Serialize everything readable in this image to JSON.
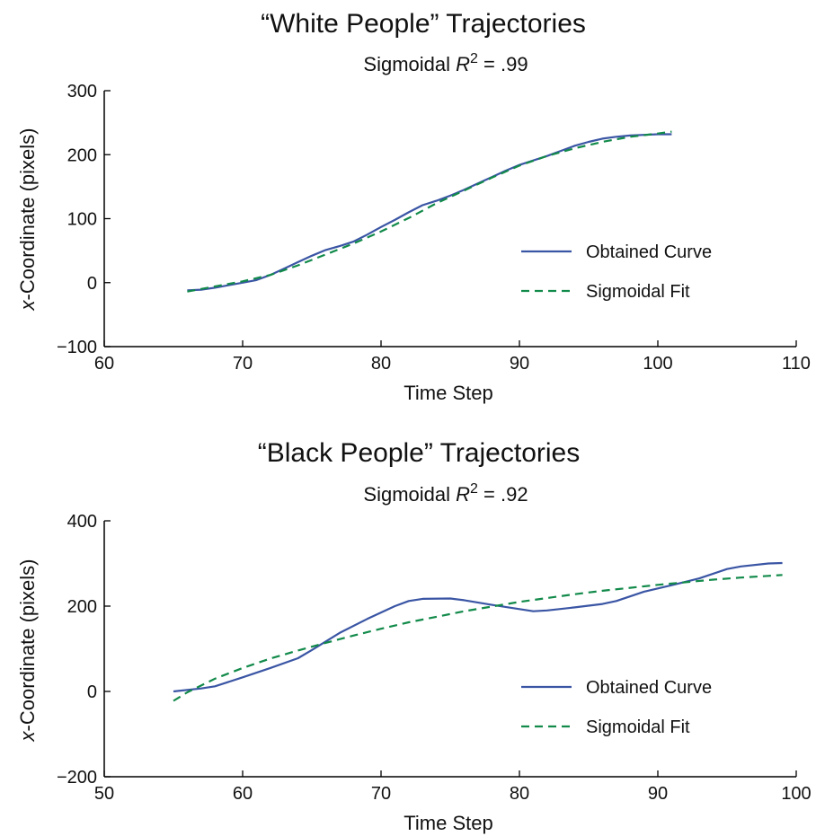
{
  "colors": {
    "obtained": "#3a55a4",
    "fit": "#128a4a",
    "axis": "#000000"
  },
  "chart_data": [
    {
      "type": "line",
      "title": "“White People” Trajectories",
      "subtitle_prefix": "Sigmoidal ",
      "subtitle_var": "R",
      "subtitle_sup": "2",
      "subtitle_suffix": " = .99",
      "xlabel": "Time Step",
      "ylabel_var": "x",
      "ylabel_rest": "-Coordinate (pixels)",
      "xlim": [
        60,
        110
      ],
      "ylim": [
        -100,
        300
      ],
      "xticks": [
        60,
        70,
        80,
        90,
        100,
        110
      ],
      "yticks": [
        -100,
        0,
        100,
        200,
        300
      ],
      "ytick_labels": [
        "−100",
        "0",
        "100",
        "200",
        "300"
      ],
      "grid": false,
      "legend": "center-right",
      "series": [
        {
          "name": "Obtained Curve",
          "style": "solid",
          "x": [
            66,
            67,
            68,
            69,
            70,
            71,
            72,
            73,
            74,
            75,
            76,
            77,
            78,
            79,
            80,
            81,
            82,
            83,
            84,
            85,
            86,
            87,
            88,
            89,
            90,
            91,
            92,
            93,
            94,
            95,
            96,
            97,
            98,
            99,
            100,
            101
          ],
          "y": [
            -12,
            -11,
            -8,
            -4,
            0,
            4,
            12,
            22,
            32,
            42,
            51,
            57,
            64,
            75,
            87,
            98,
            110,
            121,
            128,
            136,
            145,
            155,
            165,
            175,
            184,
            191,
            198,
            206,
            214,
            220,
            225,
            228,
            230,
            231,
            232,
            232
          ]
        },
        {
          "name": "Sigmoidal Fit",
          "style": "dashed",
          "x": [
            66,
            68,
            70,
            72,
            74,
            76,
            78,
            80,
            82,
            84,
            86,
            88,
            90,
            92,
            94,
            96,
            98,
            100,
            101
          ],
          "y": [
            -14,
            -6,
            2,
            12,
            27,
            44,
            61,
            80,
            101,
            124,
            144,
            164,
            183,
            198,
            210,
            220,
            228,
            233,
            236
          ]
        }
      ]
    },
    {
      "type": "line",
      "title": "“Black People” Trajectories",
      "subtitle_prefix": "Sigmoidal ",
      "subtitle_var": "R",
      "subtitle_sup": "2",
      "subtitle_suffix": " = .92",
      "xlabel": "Time Step",
      "ylabel_var": "x",
      "ylabel_rest": "-Coordinate (pixels)",
      "xlim": [
        50,
        100
      ],
      "ylim": [
        -200,
        400
      ],
      "xticks": [
        50,
        60,
        70,
        80,
        90,
        100
      ],
      "yticks": [
        -200,
        0,
        200,
        400
      ],
      "ytick_labels": [
        "−200",
        "0",
        "200",
        "400"
      ],
      "grid": false,
      "legend": "center-right",
      "series": [
        {
          "name": "Obtained Curve",
          "style": "solid",
          "x": [
            55,
            57,
            58,
            60,
            62,
            64,
            65,
            67,
            69,
            71,
            72,
            73,
            75,
            76,
            78,
            80,
            81,
            82,
            84,
            86,
            87,
            89,
            91,
            93,
            95,
            96,
            98,
            99
          ],
          "y": [
            0,
            7,
            12,
            33,
            55,
            78,
            97,
            137,
            170,
            200,
            212,
            217,
            218,
            214,
            203,
            193,
            188,
            190,
            197,
            205,
            212,
            234,
            249,
            265,
            287,
            293,
            300,
            301
          ]
        },
        {
          "name": "Sigmoidal Fit",
          "style": "dashed",
          "x": [
            55,
            56,
            58,
            60,
            62,
            64,
            66,
            68,
            70,
            72,
            74,
            76,
            78,
            80,
            82,
            84,
            86,
            88,
            90,
            92,
            94,
            96,
            98,
            99
          ],
          "y": [
            -22,
            -2,
            30,
            55,
            77,
            96,
            114,
            131,
            147,
            162,
            175,
            188,
            199,
            210,
            219,
            228,
            236,
            243,
            250,
            256,
            262,
            267,
            271,
            273
          ]
        }
      ]
    }
  ]
}
